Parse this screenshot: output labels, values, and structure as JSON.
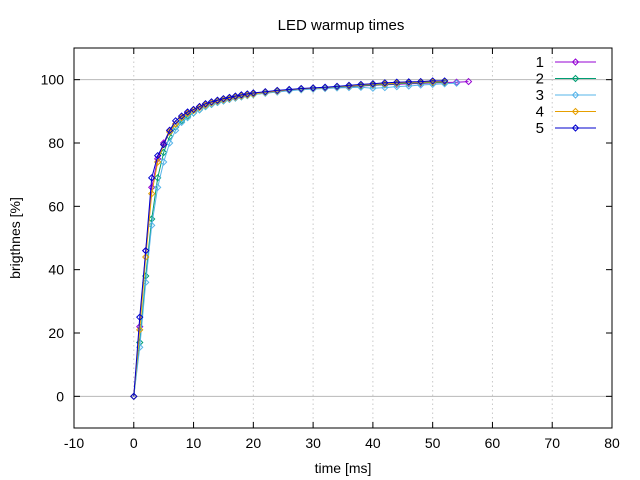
{
  "chart_data": {
    "type": "line",
    "title": "LED warmup times",
    "xlabel": "time [ms]",
    "ylabel": "brigthnes [%]",
    "xlim": [
      -10,
      80
    ],
    "ylim": [
      -10,
      110
    ],
    "xticks": [
      -10,
      0,
      10,
      20,
      30,
      40,
      50,
      60,
      70,
      80
    ],
    "yticks": [
      0,
      20,
      40,
      60,
      80,
      100
    ],
    "grid": {
      "x": "dotted",
      "y": "at 0 and 100"
    },
    "legend": "top-right",
    "marker": "diamond",
    "series": [
      {
        "name": "1",
        "color": "#9400d3",
        "x": [
          0,
          1,
          2,
          3,
          4,
          5,
          6,
          7,
          8,
          9,
          10,
          11,
          12,
          13,
          14,
          15,
          16,
          17,
          18,
          19,
          20,
          22,
          24,
          26,
          28,
          30,
          32,
          34,
          36,
          38,
          40,
          42,
          44,
          46,
          48,
          50,
          52,
          54,
          56
        ],
        "y": [
          0,
          22,
          46,
          66,
          75,
          80,
          84,
          86,
          88,
          89.5,
          90.5,
          91.5,
          92.2,
          92.8,
          93.3,
          93.8,
          94.2,
          94.6,
          95,
          95.3,
          95.6,
          96,
          96.4,
          96.7,
          97,
          97.2,
          97.4,
          97.6,
          97.8,
          98,
          98.2,
          98.4,
          98.5,
          98.7,
          98.8,
          99,
          99.1,
          99.2,
          99.4
        ]
      },
      {
        "name": "2",
        "color": "#009e73",
        "x": [
          0,
          1,
          2,
          3,
          4,
          5,
          6,
          7,
          8,
          9,
          10,
          11,
          12,
          13,
          14,
          15,
          16,
          17,
          18,
          19,
          20,
          22,
          24,
          26,
          28,
          30,
          32,
          34,
          36,
          38,
          40,
          42,
          44,
          46,
          48,
          50,
          52
        ],
        "y": [
          0,
          17,
          38,
          56,
          69,
          77,
          82,
          85,
          87,
          88.5,
          89.5,
          90.5,
          91.5,
          92.2,
          92.8,
          93.3,
          93.8,
          94.2,
          94.6,
          95,
          95.3,
          95.8,
          96.2,
          96.6,
          96.9,
          97.2,
          97.4,
          97.6,
          97.9,
          98.1,
          98.3,
          98.5,
          98.7,
          98.9,
          99,
          99.1,
          99.2
        ]
      },
      {
        "name": "3",
        "color": "#56b4e9",
        "x": [
          0,
          1,
          2,
          3,
          4,
          5,
          6,
          7,
          8,
          9,
          10,
          11,
          12,
          13,
          14,
          15,
          16,
          17,
          18,
          19,
          20,
          22,
          24,
          26,
          28,
          30,
          32,
          34,
          36,
          38,
          40,
          42,
          44,
          46,
          48,
          50,
          52,
          54
        ],
        "y": [
          0,
          15.5,
          36,
          54,
          66,
          74,
          80,
          84,
          86.5,
          88,
          89.5,
          90.5,
          91.5,
          92.2,
          92.8,
          93.3,
          93.8,
          94.2,
          94.6,
          95,
          95.3,
          95.7,
          96.1,
          96.5,
          96.8,
          97,
          97.2,
          97.4,
          97.5,
          97.6,
          97.3,
          97.5,
          97.8,
          98,
          98.3,
          98.5,
          98.7,
          98.9
        ]
      },
      {
        "name": "4",
        "color": "#e69f00",
        "x": [
          0,
          1,
          2,
          3,
          4,
          5,
          6,
          7,
          8,
          9,
          10,
          11,
          12,
          13,
          14,
          15,
          16,
          17,
          18,
          19,
          20,
          22,
          24,
          26,
          28,
          30,
          32,
          34,
          36,
          38,
          40,
          42,
          44,
          46,
          48,
          50,
          52
        ],
        "y": [
          0,
          21,
          44,
          64,
          74,
          79.5,
          83.5,
          86,
          88,
          89.3,
          90.3,
          91.2,
          92,
          92.7,
          93.2,
          93.7,
          94.1,
          94.5,
          94.9,
          95.2,
          95.5,
          96,
          96.4,
          96.8,
          97.1,
          97.3,
          97.5,
          97.8,
          98,
          98.3,
          98.5,
          98.7,
          98.9,
          99.1,
          99.2,
          99.3,
          99.4
        ]
      },
      {
        "name": "5",
        "color": "#0000cd",
        "x": [
          0,
          1,
          2,
          3,
          4,
          5,
          6,
          7,
          8,
          9,
          10,
          11,
          12,
          13,
          14,
          15,
          16,
          17,
          18,
          19,
          20,
          22,
          24,
          26,
          28,
          30,
          32,
          34,
          36,
          38,
          40,
          42,
          44,
          46,
          48,
          50,
          52
        ],
        "y": [
          0,
          25,
          46,
          69,
          76,
          79.5,
          84,
          87,
          88.5,
          89.8,
          90.6,
          91.5,
          92.4,
          93,
          93.5,
          94,
          94.4,
          94.8,
          95.2,
          95.5,
          95.8,
          96.2,
          96.6,
          96.9,
          97.2,
          97.4,
          97.6,
          97.9,
          98.2,
          98.5,
          98.7,
          99,
          99.2,
          99.3,
          99.4,
          99.6,
          99.6
        ]
      }
    ]
  }
}
